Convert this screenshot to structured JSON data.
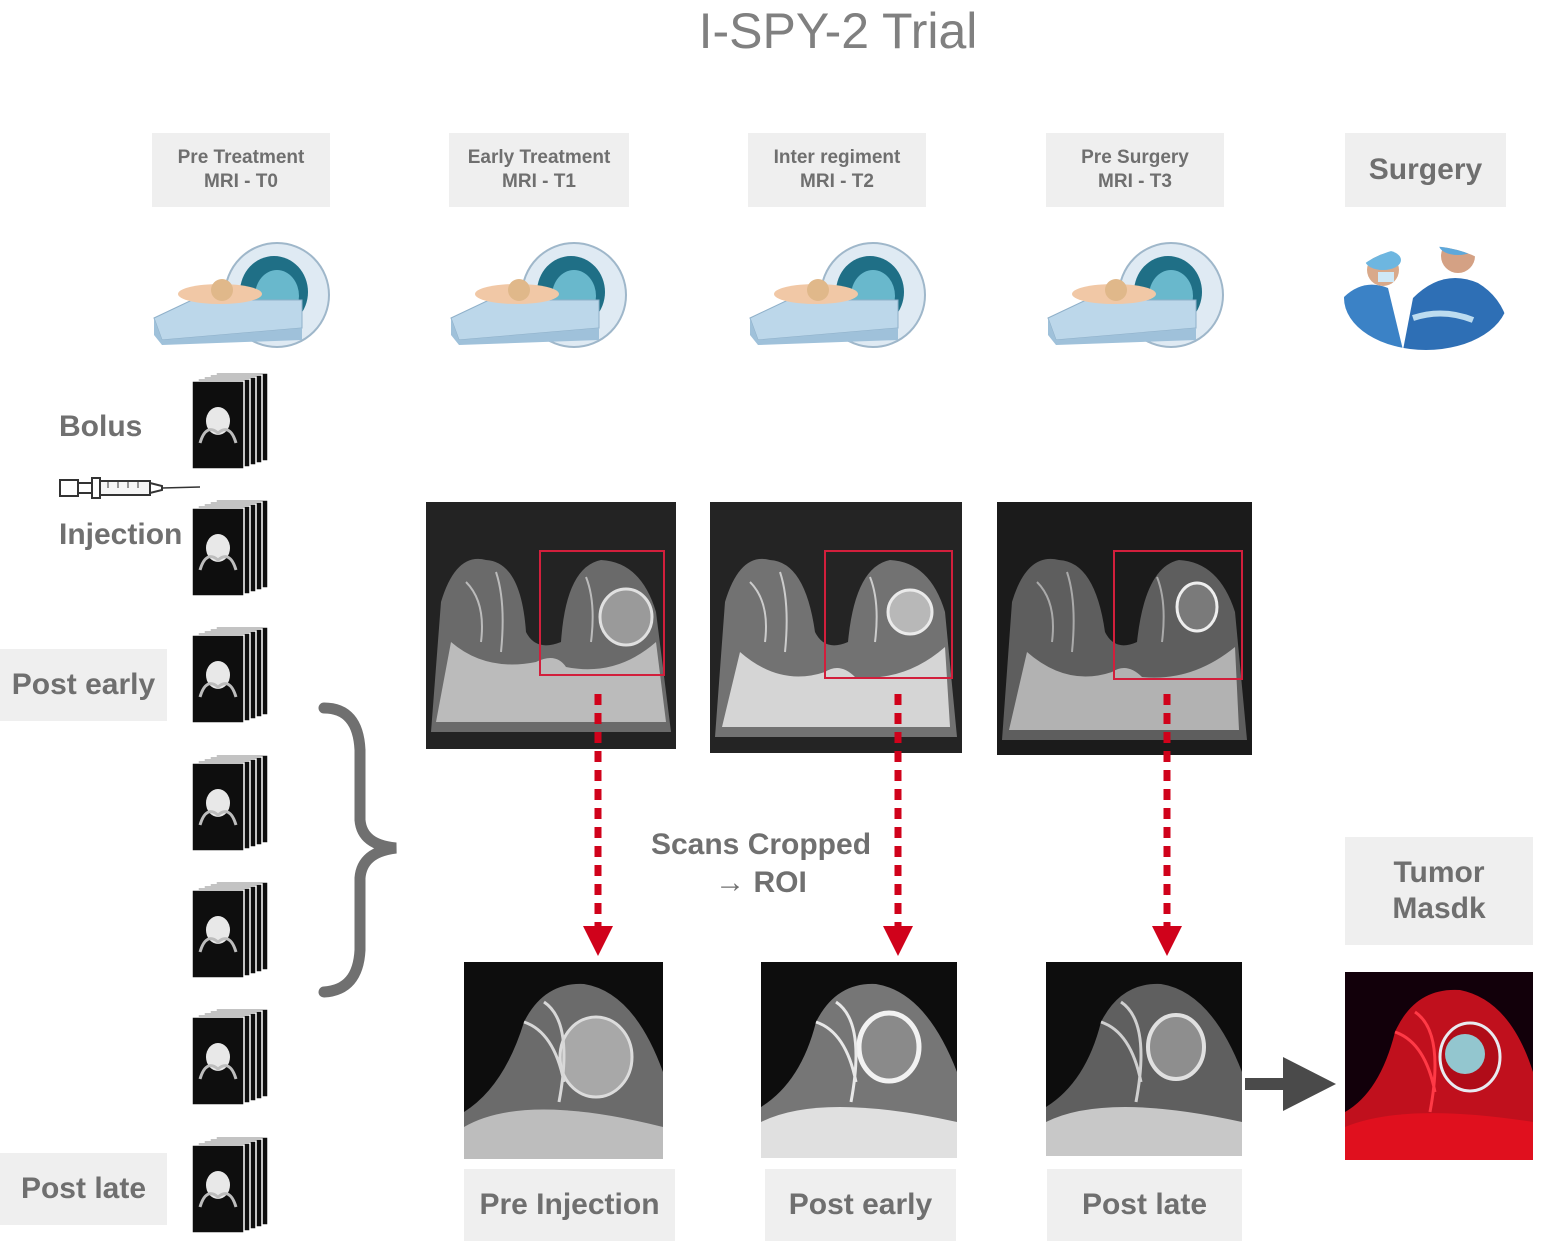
{
  "title": "I-SPY-2 Trial",
  "timeline": [
    {
      "line1": "Pre Treatment",
      "line2": "MRI - T0"
    },
    {
      "line1": "Early Treatment",
      "line2": "MRI - T1"
    },
    {
      "line1": "Inter regiment",
      "line2": "MRI - T2"
    },
    {
      "line1": "Pre Surgery",
      "line2": "MRI - T3"
    }
  ],
  "surgery_label": "Surgery",
  "left_labels": {
    "bolus": "Bolus",
    "injection": "Injection",
    "post_early": "Post early",
    "post_late": "Post late"
  },
  "crop_note": {
    "line1": "Scans Cropped",
    "line2": "→ ROI"
  },
  "tumor_mask": {
    "line1": "Tumor",
    "line2": "Masdk"
  },
  "roi_labels": [
    "Pre Injection",
    "Post early",
    "Post late"
  ],
  "colors": {
    "accent_red": "#d0021b",
    "box_gray": "#efefef",
    "text_gray": "#707070",
    "mask_red": "#e0101e",
    "mask_cyan": "#8ee8f0"
  },
  "icons": [
    "mri-scanner-icon",
    "surgeons-icon",
    "syringe-icon",
    "mri-slice-stack-icon",
    "curly-brace-icon",
    "down-arrow-icon",
    "right-arrow-icon"
  ]
}
